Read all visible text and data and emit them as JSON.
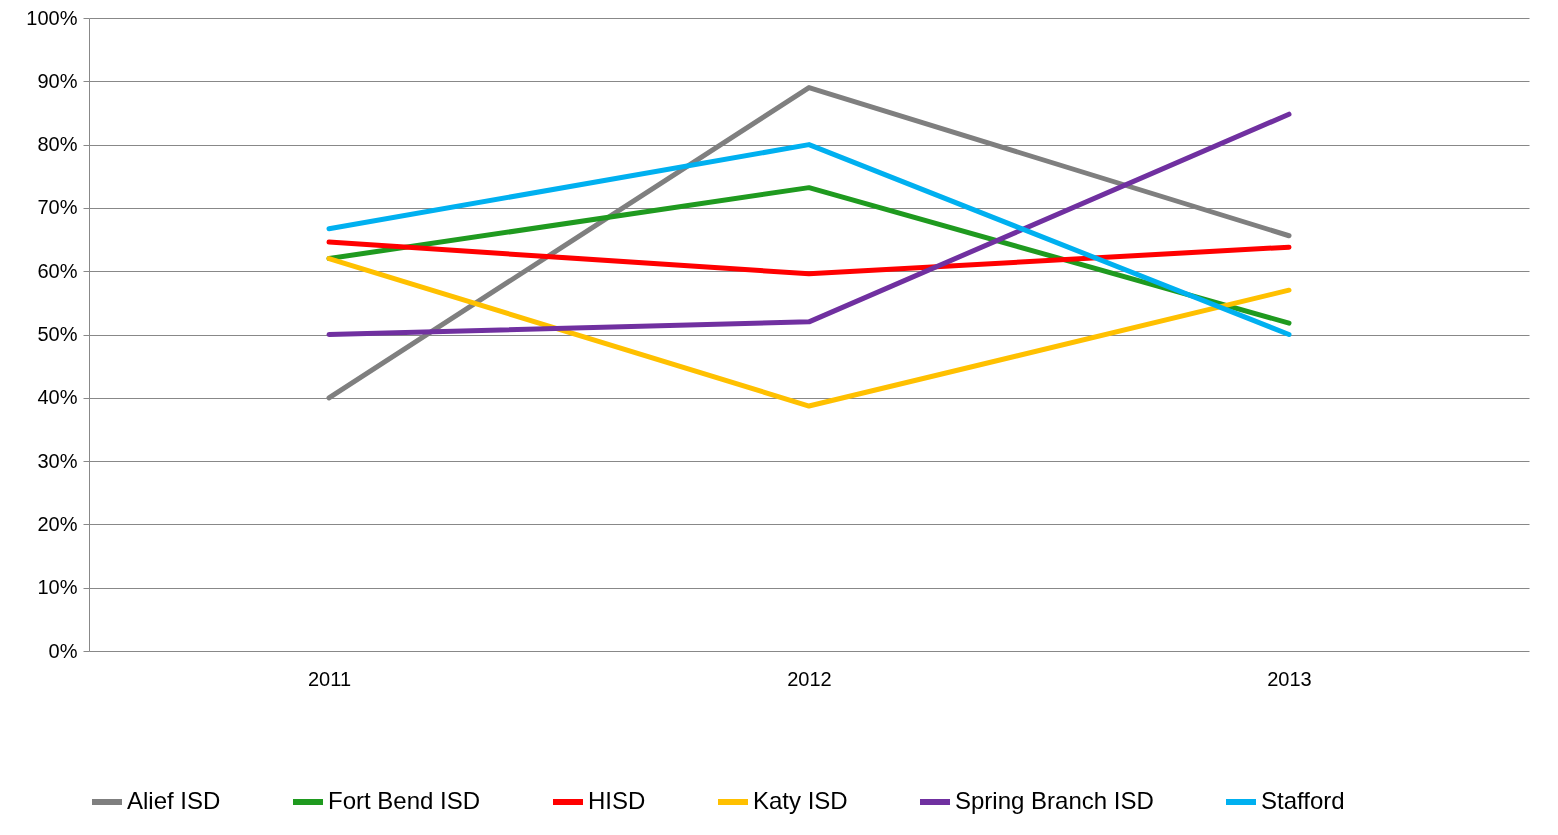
{
  "chart_data": {
    "type": "line",
    "categories": [
      "2011",
      "2012",
      "2013"
    ],
    "series": [
      {
        "name": "Alief ISD",
        "color": "#7f7f7f",
        "values": [
          40,
          89,
          65.6
        ]
      },
      {
        "name": "Fort Bend ISD",
        "color": "#1f9a1f",
        "values": [
          62,
          73.2,
          51.8
        ]
      },
      {
        "name": "HISD",
        "color": "#ff0000",
        "values": [
          64.6,
          59.6,
          63.8
        ]
      },
      {
        "name": "Katy ISD",
        "color": "#ffc000",
        "values": [
          62,
          38.7,
          57
        ]
      },
      {
        "name": "Spring Branch ISD",
        "color": "#7030a0",
        "values": [
          50,
          52,
          84.8
        ]
      },
      {
        "name": "Stafford",
        "color": "#00b0f0",
        "values": [
          66.7,
          80,
          50
        ]
      }
    ],
    "ylim": [
      0,
      100
    ],
    "yticks": [
      {
        "value": 0,
        "label": "0%"
      },
      {
        "value": 10,
        "label": "10%"
      },
      {
        "value": 20,
        "label": "20%"
      },
      {
        "value": 30,
        "label": "30%"
      },
      {
        "value": 40,
        "label": "40%"
      },
      {
        "value": 50,
        "label": "50%"
      },
      {
        "value": 60,
        "label": "60%"
      },
      {
        "value": 70,
        "label": "70%"
      },
      {
        "value": 80,
        "label": "80%"
      },
      {
        "value": 90,
        "label": "90%"
      },
      {
        "value": 100,
        "label": "100%"
      }
    ],
    "grid": "y",
    "legend": "bottom",
    "marker": "none",
    "line_style": "solid"
  }
}
